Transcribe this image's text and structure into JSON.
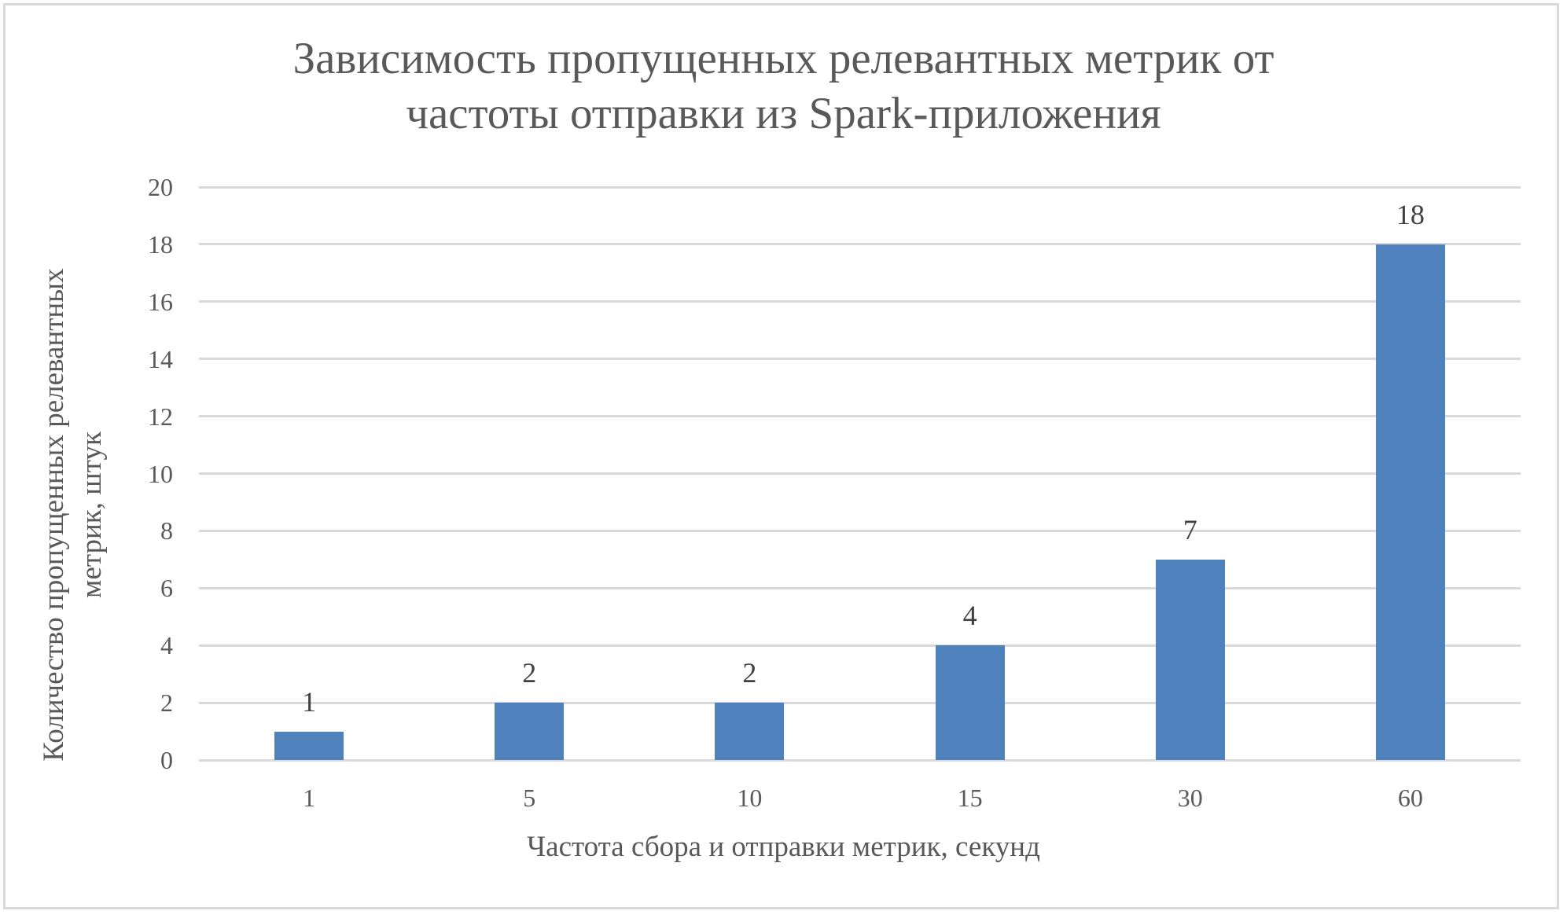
{
  "chart_data": {
    "type": "bar",
    "title": "Зависимость пропущенных релевантных метрик от частоты отправки из Spark-приложения",
    "title_lines": [
      "Зависимость пропущенных релевантных метрик от",
      "частоты отправки из Spark-приложения"
    ],
    "xlabel": "Частота сбора и отправки метрик, секунд",
    "ylabel": "Количество пропущенных релевантных метрик, штук",
    "ylabel_lines": [
      "Количество пропущенных релевантных",
      "метрик, штук"
    ],
    "categories": [
      "1",
      "5",
      "10",
      "15",
      "30",
      "60"
    ],
    "values": [
      1,
      2,
      2,
      4,
      7,
      18
    ],
    "data_labels": [
      "1",
      "2",
      "2",
      "4",
      "7",
      "18"
    ],
    "ylim": [
      0,
      20
    ],
    "yticks": [
      "0",
      "2",
      "4",
      "6",
      "8",
      "10",
      "12",
      "14",
      "16",
      "18",
      "20"
    ],
    "grid": true,
    "legend": null,
    "bar_color": "#4F81BD"
  }
}
